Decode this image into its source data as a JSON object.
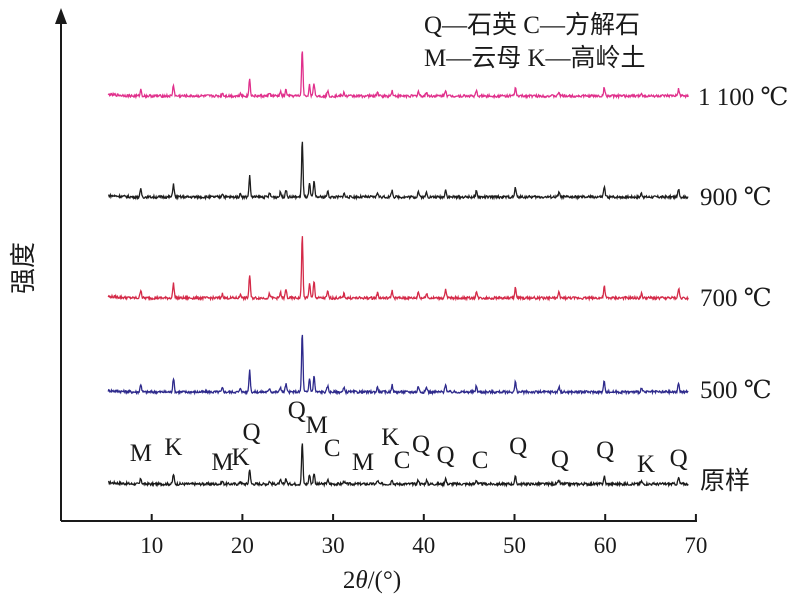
{
  "chart_data": {
    "type": "line",
    "ylabel": "强度",
    "xlabel_prefix": "2",
    "xlabel_theta": "θ",
    "xlabel_suffix": "/(°)",
    "xlim": [
      0,
      70
    ],
    "xticks": [
      10,
      20,
      30,
      40,
      50,
      60,
      70
    ],
    "xtick_labels": [
      "10",
      "20",
      "30",
      "40",
      "50",
      "60",
      "70"
    ],
    "legend": {
      "line1": "Q—石英  C—方解石",
      "line2": "M—云母  K—高岭土"
    },
    "peaks": [
      {
        "x": 8.8,
        "h": 8
      },
      {
        "x": 12.4,
        "h": 14
      },
      {
        "x": 17.8,
        "h": 4
      },
      {
        "x": 19.8,
        "h": 4
      },
      {
        "x": 20.8,
        "h": 22
      },
      {
        "x": 23.0,
        "h": 4
      },
      {
        "x": 24.2,
        "h": 5
      },
      {
        "x": 24.8,
        "h": 8
      },
      {
        "x": 26.6,
        "h": 60
      },
      {
        "x": 27.4,
        "h": 14
      },
      {
        "x": 27.9,
        "h": 16
      },
      {
        "x": 29.4,
        "h": 6
      },
      {
        "x": 31.2,
        "h": 4
      },
      {
        "x": 34.9,
        "h": 5
      },
      {
        "x": 36.5,
        "h": 7
      },
      {
        "x": 39.4,
        "h": 6
      },
      {
        "x": 40.3,
        "h": 5
      },
      {
        "x": 42.4,
        "h": 8
      },
      {
        "x": 45.8,
        "h": 6
      },
      {
        "x": 50.1,
        "h": 10
      },
      {
        "x": 54.9,
        "h": 5
      },
      {
        "x": 59.9,
        "h": 11
      },
      {
        "x": 64.0,
        "h": 4
      },
      {
        "x": 68.1,
        "h": 9
      }
    ],
    "series": [
      {
        "name": "原样",
        "color": "#1a1a1a",
        "scale": 0.7
      },
      {
        "name": "500 ℃",
        "color": "#2e2a8c",
        "scale": 1.0
      },
      {
        "name": "700 ℃",
        "color": "#d42a48",
        "scale": 1.05
      },
      {
        "name": "900 ℃",
        "color": "#1e1e1e",
        "scale": 0.95
      },
      {
        "name": "1 100 ℃",
        "color": "#e0308c",
        "scale": 0.78
      }
    ],
    "peak_labels": [
      {
        "text": "M",
        "x": 8.8
      },
      {
        "text": "K",
        "x": 12.4
      },
      {
        "text": "M",
        "x": 17.8
      },
      {
        "text": "K",
        "x": 19.8
      },
      {
        "text": "Q",
        "x": 21.0
      },
      {
        "text": "Q",
        "x": 26.0
      },
      {
        "text": "M",
        "x": 28.2
      },
      {
        "text": "C",
        "x": 29.9
      },
      {
        "text": "M",
        "x": 33.3
      },
      {
        "text": "K",
        "x": 36.3
      },
      {
        "text": "C",
        "x": 37.6
      },
      {
        "text": "Q",
        "x": 39.7
      },
      {
        "text": "Q",
        "x": 42.4
      },
      {
        "text": "C",
        "x": 46.2
      },
      {
        "text": "Q",
        "x": 50.4
      },
      {
        "text": "Q",
        "x": 55.0
      },
      {
        "text": "Q",
        "x": 60.0
      },
      {
        "text": "K",
        "x": 64.5
      },
      {
        "text": "Q",
        "x": 68.1
      }
    ]
  }
}
